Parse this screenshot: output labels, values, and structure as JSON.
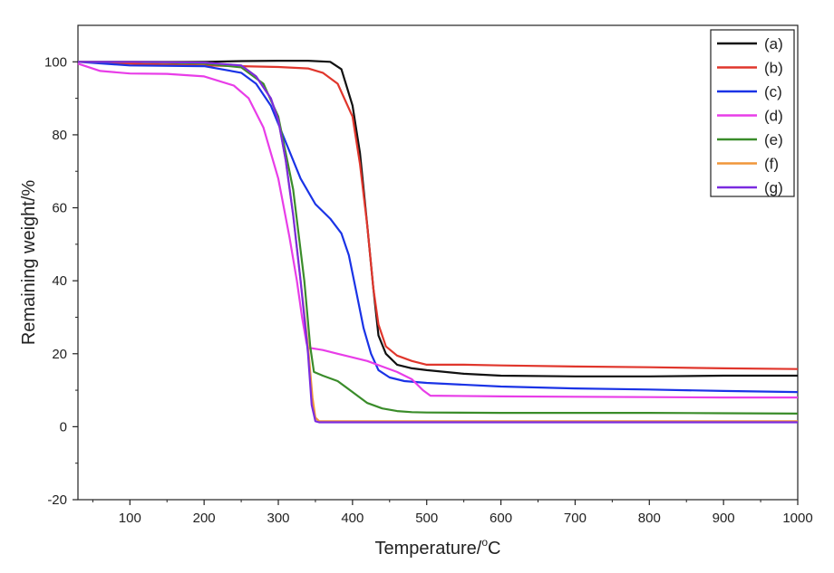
{
  "chart_data": {
    "type": "line",
    "title": "",
    "xlabel": "Temperature/°C",
    "xlabel_main": "Temperature/",
    "xlabel_sup": "o",
    "xlabel_unit": "C",
    "ylabel": "Remaining weight/%",
    "xlim": [
      30,
      1000
    ],
    "ylim": [
      -20,
      110
    ],
    "xticks": [
      100,
      200,
      300,
      400,
      500,
      600,
      700,
      800,
      900,
      1000
    ],
    "yticks": [
      -20,
      0,
      20,
      40,
      60,
      80,
      100
    ],
    "grid": false,
    "legend_position": "top-right",
    "series": [
      {
        "name": "(a)",
        "color": "#111111",
        "x": [
          30,
          100,
          200,
          250,
          300,
          340,
          370,
          385,
          400,
          410,
          420,
          428,
          435,
          445,
          460,
          480,
          500,
          550,
          600,
          700,
          800,
          900,
          1000
        ],
        "y": [
          100,
          100,
          100,
          100.2,
          100.3,
          100.3,
          100,
          98,
          88,
          75,
          55,
          38,
          25,
          20,
          17,
          16,
          15.5,
          14.5,
          14,
          13.8,
          13.8,
          14,
          14
        ]
      },
      {
        "name": "(b)",
        "color": "#e0362c",
        "x": [
          30,
          100,
          200,
          250,
          300,
          340,
          360,
          380,
          400,
          410,
          420,
          428,
          435,
          445,
          460,
          480,
          500,
          550,
          600,
          700,
          800,
          900,
          1000
        ],
        "y": [
          100,
          99.5,
          99,
          98.8,
          98.6,
          98.2,
          97,
          94,
          85,
          72,
          55,
          38,
          28,
          22,
          19.5,
          18,
          17,
          17,
          16.8,
          16.5,
          16.3,
          16,
          15.8
        ]
      },
      {
        "name": "(c)",
        "color": "#1a33e6",
        "x": [
          30,
          100,
          200,
          250,
          270,
          290,
          310,
          330,
          350,
          370,
          385,
          395,
          405,
          415,
          425,
          435,
          450,
          470,
          500,
          600,
          700,
          800,
          900,
          1000
        ],
        "y": [
          100,
          99,
          98.8,
          97,
          94,
          88,
          78,
          68,
          61,
          57,
          53,
          47,
          37,
          27,
          20,
          15.5,
          13.5,
          12.5,
          12,
          11,
          10.5,
          10.2,
          9.8,
          9.5
        ]
      },
      {
        "name": "(d)",
        "color": "#e83de8",
        "x": [
          30,
          60,
          100,
          150,
          200,
          240,
          260,
          280,
          300,
          315,
          325,
          332,
          338,
          340,
          345,
          360,
          380,
          400,
          420,
          440,
          460,
          480,
          495,
          505,
          600,
          700,
          800,
          900,
          1000
        ],
        "y": [
          99.5,
          97.5,
          96.8,
          96.7,
          96,
          93.5,
          90,
          82,
          68,
          52,
          40,
          30,
          23,
          21.5,
          21.5,
          21,
          20,
          19,
          18,
          16.5,
          15,
          13,
          10,
          8.5,
          8.3,
          8.2,
          8.1,
          8,
          8
        ]
      },
      {
        "name": "(e)",
        "color": "#3a8c2a",
        "x": [
          30,
          100,
          200,
          250,
          280,
          300,
          320,
          335,
          343,
          348,
          360,
          380,
          400,
          420,
          440,
          460,
          480,
          500,
          600,
          700,
          800,
          900,
          1000
        ],
        "y": [
          100,
          100,
          99.5,
          98.5,
          94,
          85,
          65,
          40,
          22,
          15,
          14,
          12.5,
          9.5,
          6.5,
          5,
          4.3,
          4,
          3.9,
          3.8,
          3.8,
          3.8,
          3.7,
          3.6
        ]
      },
      {
        "name": "(f)",
        "color": "#f0963a",
        "x": [
          30,
          100,
          200,
          250,
          270,
          290,
          300,
          310,
          320,
          330,
          340,
          346,
          350,
          355,
          400,
          500,
          600,
          700,
          800,
          900,
          1000
        ],
        "y": [
          100,
          100,
          99.8,
          99,
          96,
          90,
          84,
          73,
          58,
          40,
          22,
          8,
          2.5,
          1.5,
          1.5,
          1.5,
          1.5,
          1.5,
          1.5,
          1.5,
          1.5
        ]
      },
      {
        "name": "(g)",
        "color": "#7a2be0",
        "x": [
          30,
          100,
          200,
          250,
          270,
          290,
          300,
          310,
          320,
          330,
          340,
          345,
          350,
          355,
          400,
          500,
          600,
          700,
          800,
          900,
          1000
        ],
        "y": [
          100,
          100,
          99.8,
          99,
          96,
          90,
          84,
          73,
          58,
          40,
          20,
          6,
          1.5,
          1.2,
          1.2,
          1.2,
          1.2,
          1.2,
          1.2,
          1.2,
          1.2
        ]
      }
    ]
  }
}
